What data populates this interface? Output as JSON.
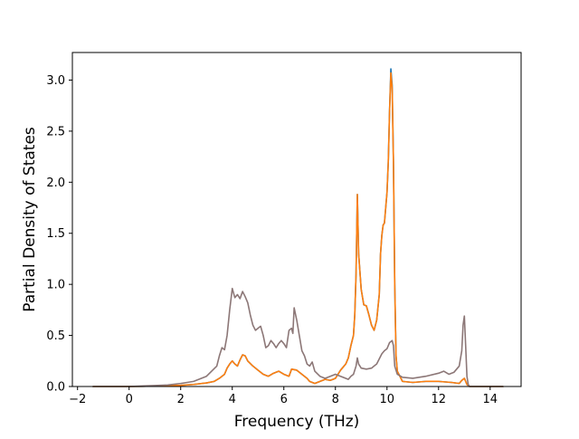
{
  "chart_data": {
    "type": "line",
    "title": "",
    "xlabel": "Frequency (THz)",
    "ylabel": "Partial Density of States",
    "xlim": [
      -2.2,
      15.2
    ],
    "ylim": [
      0.0,
      3.27
    ],
    "xticks": [
      -2,
      0,
      2,
      4,
      6,
      8,
      10,
      12,
      14
    ],
    "yticks": [
      0.0,
      0.5,
      1.0,
      1.5,
      2.0,
      2.5,
      3.0
    ],
    "xtick_labels": [
      "−2",
      "0",
      "2",
      "4",
      "6",
      "8",
      "10",
      "12",
      "14"
    ],
    "ytick_labels": [
      "0.0",
      "0.5",
      "1.0",
      "1.5",
      "2.0",
      "2.5",
      "3.0"
    ],
    "grid": false,
    "legend": "none",
    "series": [
      {
        "color": "#1f77b4",
        "points": [
          [
            -1.4,
            0.0
          ],
          [
            0,
            0.0
          ],
          [
            0.5,
            0.002
          ],
          [
            1,
            0.005
          ],
          [
            1.5,
            0.008
          ],
          [
            2,
            0.012
          ],
          [
            2.5,
            0.02
          ],
          [
            3,
            0.035
          ],
          [
            3.3,
            0.05
          ],
          [
            3.5,
            0.08
          ],
          [
            3.7,
            0.12
          ],
          [
            3.8,
            0.18
          ],
          [
            3.9,
            0.22
          ],
          [
            4.0,
            0.25
          ],
          [
            4.1,
            0.22
          ],
          [
            4.2,
            0.2
          ],
          [
            4.3,
            0.26
          ],
          [
            4.4,
            0.31
          ],
          [
            4.5,
            0.3
          ],
          [
            4.6,
            0.25
          ],
          [
            4.8,
            0.2
          ],
          [
            5.0,
            0.16
          ],
          [
            5.2,
            0.12
          ],
          [
            5.4,
            0.1
          ],
          [
            5.6,
            0.13
          ],
          [
            5.8,
            0.15
          ],
          [
            6.0,
            0.12
          ],
          [
            6.2,
            0.1
          ],
          [
            6.3,
            0.17
          ],
          [
            6.5,
            0.16
          ],
          [
            6.7,
            0.12
          ],
          [
            6.9,
            0.08
          ],
          [
            7.0,
            0.05
          ],
          [
            7.2,
            0.03
          ],
          [
            7.4,
            0.05
          ],
          [
            7.6,
            0.07
          ],
          [
            7.8,
            0.06
          ],
          [
            8.0,
            0.08
          ],
          [
            8.2,
            0.16
          ],
          [
            8.4,
            0.22
          ],
          [
            8.5,
            0.28
          ],
          [
            8.6,
            0.4
          ],
          [
            8.7,
            0.5
          ],
          [
            8.75,
            0.7
          ],
          [
            8.8,
            1.1
          ],
          [
            8.85,
            1.88
          ],
          [
            8.9,
            1.3
          ],
          [
            9.0,
            0.95
          ],
          [
            9.1,
            0.8
          ],
          [
            9.2,
            0.79
          ],
          [
            9.3,
            0.7
          ],
          [
            9.4,
            0.6
          ],
          [
            9.5,
            0.55
          ],
          [
            9.6,
            0.65
          ],
          [
            9.7,
            0.9
          ],
          [
            9.75,
            1.3
          ],
          [
            9.8,
            1.48
          ],
          [
            9.85,
            1.58
          ],
          [
            9.9,
            1.6
          ],
          [
            10.0,
            1.9
          ],
          [
            10.05,
            2.2
          ],
          [
            10.1,
            2.7
          ],
          [
            10.15,
            3.11
          ],
          [
            10.2,
            2.95
          ],
          [
            10.25,
            2.2
          ],
          [
            10.3,
            1.0
          ],
          [
            10.35,
            0.3
          ],
          [
            10.4,
            0.15
          ],
          [
            10.6,
            0.05
          ],
          [
            11.0,
            0.04
          ],
          [
            11.5,
            0.05
          ],
          [
            12.0,
            0.05
          ],
          [
            12.5,
            0.04
          ],
          [
            12.8,
            0.03
          ],
          [
            12.9,
            0.06
          ],
          [
            13.0,
            0.08
          ],
          [
            13.05,
            0.05
          ],
          [
            13.1,
            0.02
          ],
          [
            13.2,
            0.0
          ],
          [
            14.5,
            0.0
          ]
        ]
      },
      {
        "color": "#ff7f0e",
        "points": [
          [
            -1.4,
            0.0
          ],
          [
            0,
            0.0
          ],
          [
            0.5,
            0.002
          ],
          [
            1,
            0.005
          ],
          [
            1.5,
            0.008
          ],
          [
            2,
            0.012
          ],
          [
            2.5,
            0.02
          ],
          [
            3,
            0.035
          ],
          [
            3.3,
            0.05
          ],
          [
            3.5,
            0.08
          ],
          [
            3.7,
            0.12
          ],
          [
            3.8,
            0.18
          ],
          [
            3.9,
            0.22
          ],
          [
            4.0,
            0.25
          ],
          [
            4.1,
            0.22
          ],
          [
            4.2,
            0.2
          ],
          [
            4.3,
            0.26
          ],
          [
            4.4,
            0.31
          ],
          [
            4.5,
            0.3
          ],
          [
            4.6,
            0.25
          ],
          [
            4.8,
            0.2
          ],
          [
            5.0,
            0.16
          ],
          [
            5.2,
            0.12
          ],
          [
            5.4,
            0.1
          ],
          [
            5.6,
            0.13
          ],
          [
            5.8,
            0.15
          ],
          [
            6.0,
            0.12
          ],
          [
            6.2,
            0.1
          ],
          [
            6.3,
            0.17
          ],
          [
            6.5,
            0.16
          ],
          [
            6.7,
            0.12
          ],
          [
            6.9,
            0.08
          ],
          [
            7.0,
            0.05
          ],
          [
            7.2,
            0.03
          ],
          [
            7.4,
            0.05
          ],
          [
            7.6,
            0.07
          ],
          [
            7.8,
            0.06
          ],
          [
            8.0,
            0.08
          ],
          [
            8.2,
            0.16
          ],
          [
            8.4,
            0.22
          ],
          [
            8.5,
            0.28
          ],
          [
            8.6,
            0.4
          ],
          [
            8.7,
            0.5
          ],
          [
            8.75,
            0.7
          ],
          [
            8.8,
            1.1
          ],
          [
            8.85,
            1.88
          ],
          [
            8.9,
            1.3
          ],
          [
            9.0,
            0.95
          ],
          [
            9.1,
            0.8
          ],
          [
            9.2,
            0.79
          ],
          [
            9.3,
            0.7
          ],
          [
            9.4,
            0.6
          ],
          [
            9.5,
            0.55
          ],
          [
            9.6,
            0.65
          ],
          [
            9.7,
            0.9
          ],
          [
            9.75,
            1.3
          ],
          [
            9.8,
            1.48
          ],
          [
            9.85,
            1.58
          ],
          [
            9.9,
            1.6
          ],
          [
            10.0,
            1.9
          ],
          [
            10.05,
            2.2
          ],
          [
            10.1,
            2.7
          ],
          [
            10.15,
            3.07
          ],
          [
            10.2,
            2.92
          ],
          [
            10.25,
            2.2
          ],
          [
            10.3,
            1.0
          ],
          [
            10.35,
            0.3
          ],
          [
            10.4,
            0.15
          ],
          [
            10.6,
            0.05
          ],
          [
            11.0,
            0.04
          ],
          [
            11.5,
            0.05
          ],
          [
            12.0,
            0.05
          ],
          [
            12.5,
            0.04
          ],
          [
            12.8,
            0.03
          ],
          [
            12.9,
            0.06
          ],
          [
            13.0,
            0.08
          ],
          [
            13.05,
            0.05
          ],
          [
            13.1,
            0.02
          ],
          [
            13.2,
            0.0
          ],
          [
            14.5,
            0.0
          ]
        ]
      },
      {
        "color": "#8c7777",
        "points": [
          [
            -1.4,
            0.0
          ],
          [
            0,
            0.0
          ],
          [
            0.5,
            0.005
          ],
          [
            1,
            0.01
          ],
          [
            1.5,
            0.015
          ],
          [
            2,
            0.03
          ],
          [
            2.5,
            0.05
          ],
          [
            3,
            0.1
          ],
          [
            3.2,
            0.15
          ],
          [
            3.4,
            0.2
          ],
          [
            3.5,
            0.3
          ],
          [
            3.6,
            0.38
          ],
          [
            3.7,
            0.36
          ],
          [
            3.8,
            0.5
          ],
          [
            3.9,
            0.75
          ],
          [
            4.0,
            0.96
          ],
          [
            4.1,
            0.87
          ],
          [
            4.2,
            0.9
          ],
          [
            4.3,
            0.86
          ],
          [
            4.4,
            0.93
          ],
          [
            4.5,
            0.88
          ],
          [
            4.6,
            0.82
          ],
          [
            4.7,
            0.7
          ],
          [
            4.8,
            0.6
          ],
          [
            4.9,
            0.55
          ],
          [
            5.0,
            0.57
          ],
          [
            5.1,
            0.59
          ],
          [
            5.2,
            0.5
          ],
          [
            5.3,
            0.38
          ],
          [
            5.4,
            0.4
          ],
          [
            5.5,
            0.45
          ],
          [
            5.6,
            0.42
          ],
          [
            5.7,
            0.38
          ],
          [
            5.8,
            0.42
          ],
          [
            5.9,
            0.45
          ],
          [
            6.0,
            0.42
          ],
          [
            6.1,
            0.38
          ],
          [
            6.2,
            0.55
          ],
          [
            6.3,
            0.57
          ],
          [
            6.35,
            0.52
          ],
          [
            6.4,
            0.77
          ],
          [
            6.5,
            0.65
          ],
          [
            6.6,
            0.5
          ],
          [
            6.7,
            0.35
          ],
          [
            6.8,
            0.3
          ],
          [
            6.9,
            0.22
          ],
          [
            7.0,
            0.2
          ],
          [
            7.1,
            0.24
          ],
          [
            7.2,
            0.15
          ],
          [
            7.4,
            0.1
          ],
          [
            7.6,
            0.08
          ],
          [
            7.8,
            0.1
          ],
          [
            8.0,
            0.12
          ],
          [
            8.2,
            0.1
          ],
          [
            8.4,
            0.08
          ],
          [
            8.5,
            0.07
          ],
          [
            8.6,
            0.1
          ],
          [
            8.7,
            0.12
          ],
          [
            8.8,
            0.2
          ],
          [
            8.85,
            0.28
          ],
          [
            8.9,
            0.22
          ],
          [
            9.0,
            0.18
          ],
          [
            9.2,
            0.17
          ],
          [
            9.4,
            0.18
          ],
          [
            9.5,
            0.2
          ],
          [
            9.6,
            0.22
          ],
          [
            9.7,
            0.27
          ],
          [
            9.8,
            0.32
          ],
          [
            9.9,
            0.35
          ],
          [
            10.0,
            0.37
          ],
          [
            10.1,
            0.43
          ],
          [
            10.2,
            0.45
          ],
          [
            10.25,
            0.4
          ],
          [
            10.3,
            0.2
          ],
          [
            10.4,
            0.12
          ],
          [
            10.6,
            0.09
          ],
          [
            11.0,
            0.08
          ],
          [
            11.5,
            0.1
          ],
          [
            12.0,
            0.13
          ],
          [
            12.2,
            0.15
          ],
          [
            12.4,
            0.12
          ],
          [
            12.6,
            0.14
          ],
          [
            12.8,
            0.2
          ],
          [
            12.9,
            0.35
          ],
          [
            12.95,
            0.6
          ],
          [
            13.0,
            0.69
          ],
          [
            13.05,
            0.4
          ],
          [
            13.1,
            0.1
          ],
          [
            13.15,
            0.02
          ],
          [
            13.2,
            0.0
          ],
          [
            14.5,
            0.0
          ]
        ]
      }
    ]
  }
}
